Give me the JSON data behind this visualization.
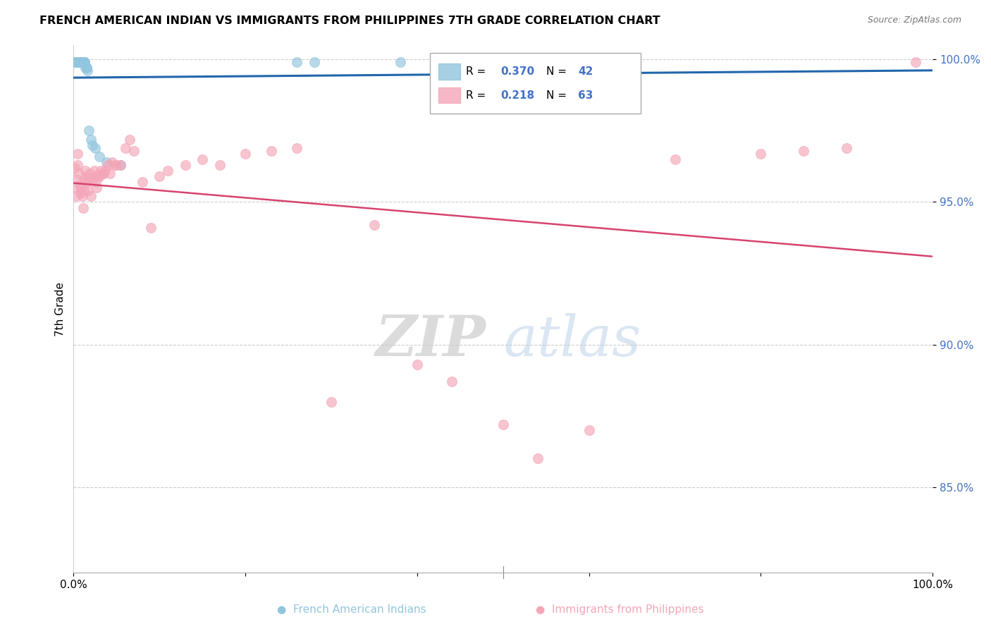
{
  "title": "FRENCH AMERICAN INDIAN VS IMMIGRANTS FROM PHILIPPINES 7TH GRADE CORRELATION CHART",
  "source": "Source: ZipAtlas.com",
  "ylabel": "7th Grade",
  "xlim": [
    0.0,
    1.0
  ],
  "ylim": [
    0.82,
    1.005
  ],
  "yticks": [
    0.85,
    0.9,
    0.95,
    1.0
  ],
  "ytick_labels": [
    "85.0%",
    "90.0%",
    "95.0%",
    "100.0%"
  ],
  "blue_color": "#92c5de",
  "blue_line_color": "#2166ac",
  "pink_color": "#f4a6b8",
  "pink_line_color": "#d6436e",
  "watermark_zip": "ZIP",
  "watermark_atlas": "atlas",
  "blue_scatter_x": [
    0.002,
    0.003,
    0.003,
    0.004,
    0.004,
    0.005,
    0.005,
    0.005,
    0.006,
    0.006,
    0.006,
    0.007,
    0.007,
    0.007,
    0.008,
    0.008,
    0.008,
    0.009,
    0.009,
    0.01,
    0.01,
    0.01,
    0.011,
    0.011,
    0.012,
    0.012,
    0.013,
    0.013,
    0.014,
    0.015,
    0.015,
    0.016,
    0.018,
    0.02,
    0.022,
    0.025,
    0.03,
    0.038,
    0.055,
    0.26,
    0.28,
    0.38
  ],
  "blue_scatter_y": [
    0.999,
    0.999,
    0.999,
    0.999,
    0.999,
    0.999,
    0.999,
    0.999,
    0.999,
    0.999,
    0.999,
    0.999,
    0.999,
    0.999,
    0.999,
    0.999,
    0.999,
    0.999,
    0.999,
    0.999,
    0.999,
    0.999,
    0.999,
    0.999,
    0.999,
    0.999,
    0.999,
    0.999,
    0.997,
    0.997,
    0.997,
    0.996,
    0.975,
    0.972,
    0.97,
    0.969,
    0.966,
    0.964,
    0.963,
    0.999,
    0.999,
    0.999
  ],
  "pink_scatter_x": [
    0.001,
    0.002,
    0.003,
    0.004,
    0.005,
    0.005,
    0.006,
    0.007,
    0.008,
    0.009,
    0.01,
    0.011,
    0.012,
    0.013,
    0.014,
    0.015,
    0.016,
    0.017,
    0.018,
    0.019,
    0.02,
    0.022,
    0.024,
    0.025,
    0.026,
    0.027,
    0.028,
    0.03,
    0.032,
    0.034,
    0.035,
    0.037,
    0.04,
    0.042,
    0.045,
    0.048,
    0.05,
    0.055,
    0.06,
    0.065,
    0.07,
    0.08,
    0.09,
    0.1,
    0.11,
    0.13,
    0.15,
    0.17,
    0.2,
    0.23,
    0.26,
    0.3,
    0.35,
    0.4,
    0.44,
    0.5,
    0.54,
    0.6,
    0.7,
    0.8,
    0.85,
    0.9,
    0.98
  ],
  "pink_scatter_y": [
    0.962,
    0.955,
    0.952,
    0.958,
    0.963,
    0.967,
    0.96,
    0.956,
    0.953,
    0.955,
    0.952,
    0.948,
    0.954,
    0.958,
    0.961,
    0.959,
    0.957,
    0.954,
    0.958,
    0.96,
    0.952,
    0.958,
    0.961,
    0.959,
    0.957,
    0.955,
    0.959,
    0.959,
    0.961,
    0.96,
    0.96,
    0.961,
    0.963,
    0.96,
    0.964,
    0.963,
    0.963,
    0.963,
    0.969,
    0.972,
    0.968,
    0.957,
    0.941,
    0.959,
    0.961,
    0.963,
    0.965,
    0.963,
    0.967,
    0.968,
    0.969,
    0.88,
    0.942,
    0.893,
    0.887,
    0.872,
    0.86,
    0.87,
    0.965,
    0.967,
    0.968,
    0.969,
    0.999
  ]
}
